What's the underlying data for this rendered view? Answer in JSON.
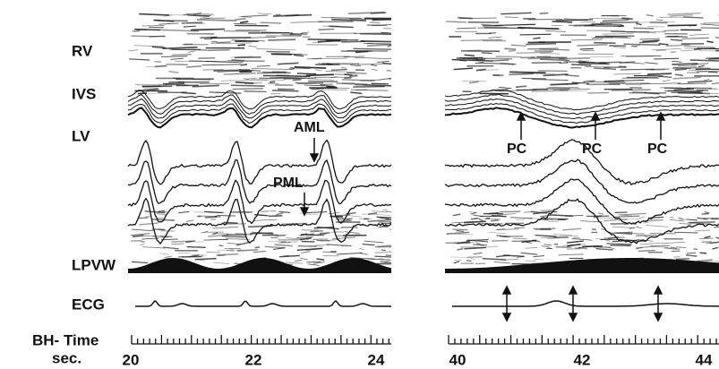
{
  "left_labels": [
    "RV",
    "IVS",
    "LV",
    "LPVW",
    "ECG"
  ],
  "axis_label": {
    "line1": "BH- Time",
    "line2": "sec."
  },
  "panels": [
    {
      "annotations": [
        "AML",
        "PML"
      ],
      "time_labels": [
        "20",
        "22",
        "24"
      ]
    },
    {
      "annotations": [
        "PC",
        "PC",
        "PC"
      ],
      "time_labels": [
        "40",
        "42",
        "44"
      ]
    }
  ]
}
